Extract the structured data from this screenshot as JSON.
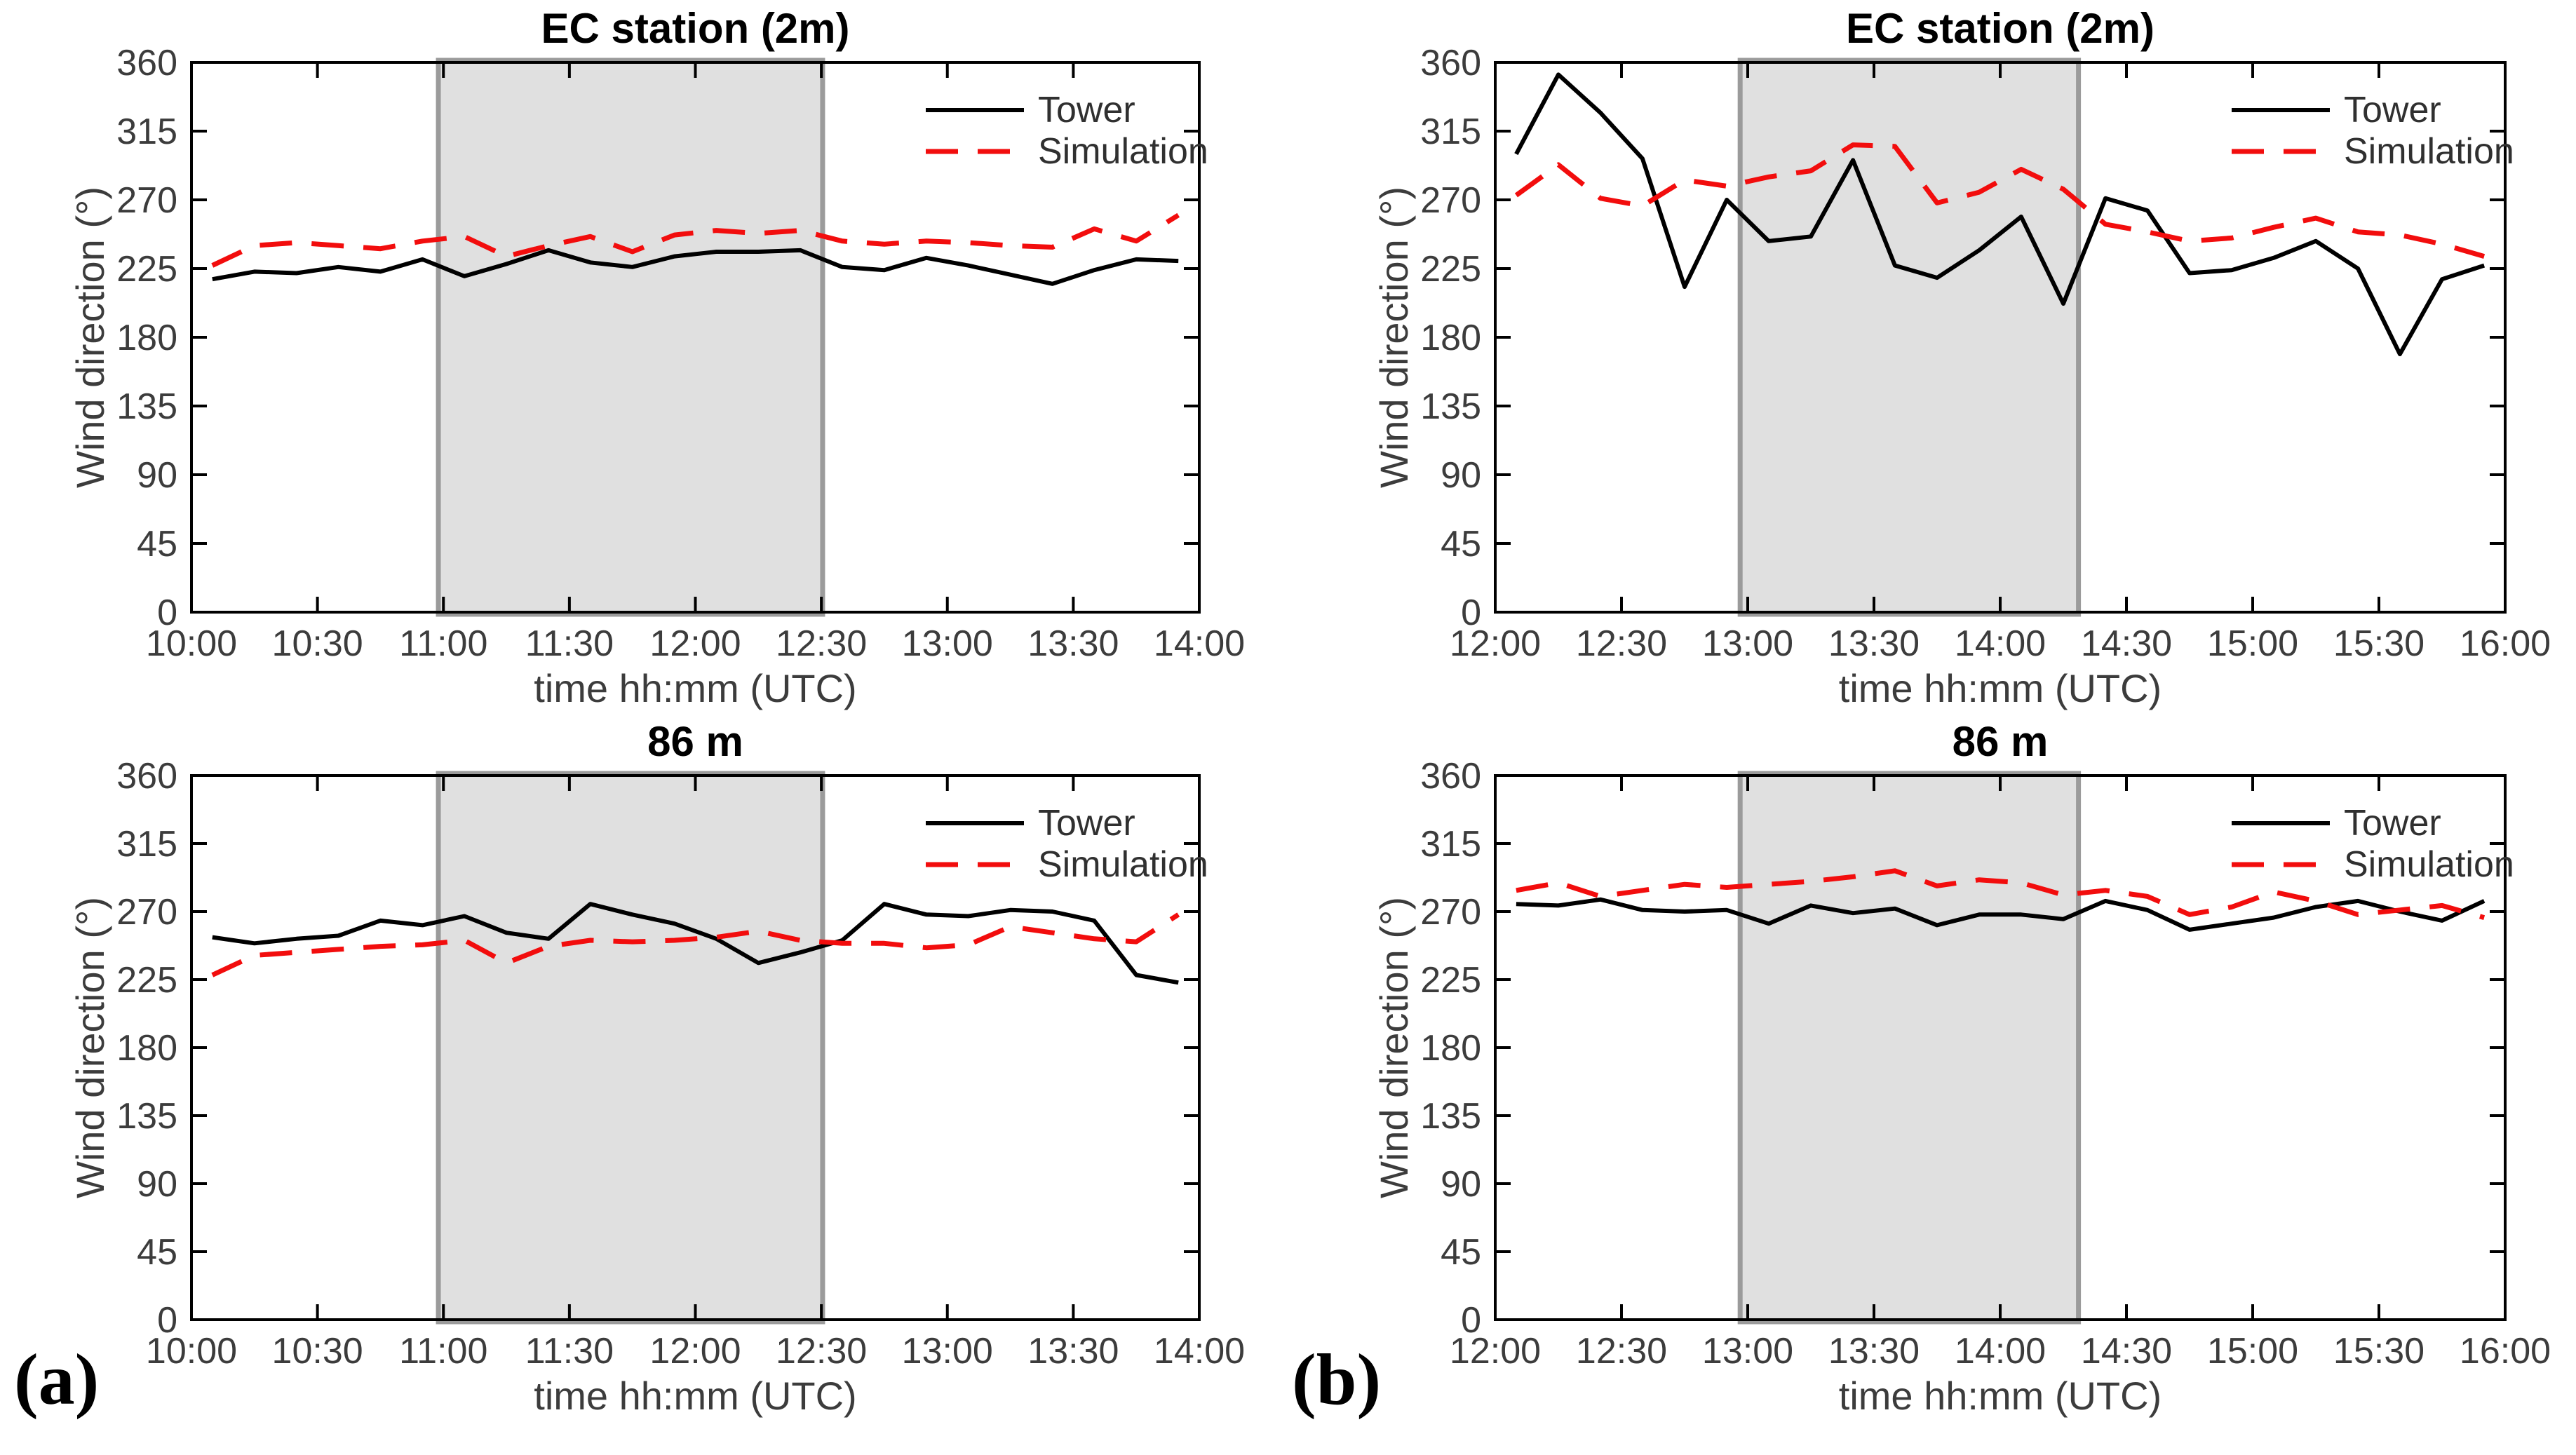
{
  "figure": {
    "caption_labels": [
      "(a)",
      "(b)"
    ],
    "colors": {
      "tower": "#000000",
      "simulation": "#f20d0d",
      "band_fill": "#e0e0e0",
      "band_edge": "#9b9b9b",
      "axis": "#000000",
      "tick_label": "#3c3c3c",
      "title": "#000000"
    },
    "legend_labels": [
      "Tower",
      "Simulation"
    ]
  },
  "chart_data": [
    {
      "type": "line",
      "panel": "top-left",
      "title": "EC station (2m)",
      "xlabel": "time hh:mm (UTC)",
      "ylabel": "Wind direction (°)",
      "ylim": [
        0,
        360
      ],
      "yticks": [
        0,
        45,
        90,
        135,
        180,
        225,
        270,
        315,
        360
      ],
      "xtick_hours": [
        10,
        10.5,
        11,
        11.5,
        12,
        12.5,
        13,
        13.5,
        14
      ],
      "xtick_labels": [
        "10:00",
        "10:30",
        "11:00",
        "11:30",
        "12:00",
        "12:30",
        "13:00",
        "13:30",
        "14:00"
      ],
      "shaded_region_hours": [
        10.98,
        12.505
      ],
      "grid": false,
      "legend_position": "top-right",
      "x_hours": [
        10.083,
        10.25,
        10.417,
        10.583,
        10.75,
        10.917,
        11.083,
        11.25,
        11.417,
        11.583,
        11.75,
        11.917,
        12.083,
        12.25,
        12.417,
        12.583,
        12.75,
        12.917,
        13.083,
        13.25,
        13.417,
        13.583,
        13.75,
        13.917
      ],
      "series": [
        {
          "name": "Tower",
          "style": "solid",
          "values": [
            218,
            223,
            222,
            226,
            223,
            231,
            220,
            228,
            237,
            229,
            226,
            233,
            236,
            236,
            237,
            226,
            224,
            232,
            227,
            221,
            215,
            224,
            231,
            230
          ]
        },
        {
          "name": "Simulation",
          "style": "dashed",
          "values": [
            227,
            240,
            242,
            240,
            238,
            243,
            246,
            233,
            240,
            246,
            236,
            247,
            250,
            248,
            250,
            243,
            241,
            243,
            242,
            240,
            239,
            251,
            243,
            260
          ]
        }
      ]
    },
    {
      "type": "line",
      "panel": "top-right",
      "title": "EC station (2m)",
      "xlabel": "time hh:mm (UTC)",
      "ylabel": "Wind direction (°)",
      "ylim": [
        0,
        360
      ],
      "yticks": [
        0,
        45,
        90,
        135,
        180,
        225,
        270,
        315,
        360
      ],
      "xtick_hours": [
        12,
        12.5,
        13,
        13.5,
        14,
        14.5,
        15,
        15.5,
        16
      ],
      "xtick_labels": [
        "12:00",
        "12:30",
        "13:00",
        "13:30",
        "14:00",
        "14:30",
        "15:00",
        "15:30",
        "16:00"
      ],
      "shaded_region_hours": [
        12.97,
        14.31
      ],
      "grid": false,
      "legend_position": "top-right",
      "x_hours": [
        12.083,
        12.25,
        12.417,
        12.583,
        12.75,
        12.917,
        13.083,
        13.25,
        13.417,
        13.583,
        13.75,
        13.917,
        14.083,
        14.25,
        14.417,
        14.583,
        14.75,
        14.917,
        15.083,
        15.25,
        15.417,
        15.583,
        15.75,
        15.917
      ],
      "series": [
        {
          "name": "Tower",
          "style": "solid",
          "values": [
            300,
            352,
            327,
            297,
            213,
            270,
            243,
            246,
            296,
            227,
            219,
            237,
            259,
            202,
            271,
            263,
            222,
            224,
            232,
            243,
            225,
            169,
            218,
            227
          ]
        },
        {
          "name": "Simulation",
          "style": "dashed",
          "values": [
            273,
            293,
            271,
            266,
            283,
            279,
            285,
            289,
            306,
            305,
            268,
            275,
            290,
            277,
            254,
            249,
            243,
            245,
            252,
            258,
            249,
            247,
            241,
            233
          ]
        }
      ]
    },
    {
      "type": "line",
      "panel": "bottom-left",
      "title": "86 m",
      "xlabel": "time hh:mm (UTC)",
      "ylabel": "Wind direction (°)",
      "ylim": [
        0,
        360
      ],
      "yticks": [
        0,
        45,
        90,
        135,
        180,
        225,
        270,
        315,
        360
      ],
      "xtick_hours": [
        10,
        10.5,
        11,
        11.5,
        12,
        12.5,
        13,
        13.5,
        14
      ],
      "xtick_labels": [
        "10:00",
        "10:30",
        "11:00",
        "11:30",
        "12:00",
        "12:30",
        "13:00",
        "13:30",
        "14:00"
      ],
      "shaded_region_hours": [
        10.98,
        12.505
      ],
      "grid": false,
      "legend_position": "top-right",
      "x_hours": [
        10.083,
        10.25,
        10.417,
        10.583,
        10.75,
        10.917,
        11.083,
        11.25,
        11.417,
        11.583,
        11.75,
        11.917,
        12.083,
        12.25,
        12.417,
        12.583,
        12.75,
        12.917,
        13.083,
        13.25,
        13.417,
        13.583,
        13.75,
        13.917
      ],
      "series": [
        {
          "name": "Tower",
          "style": "solid",
          "values": [
            253,
            249,
            252,
            254,
            264,
            261,
            267,
            256,
            252,
            275,
            268,
            262,
            252,
            236,
            243,
            251,
            275,
            268,
            267,
            271,
            270,
            264,
            228,
            223
          ]
        },
        {
          "name": "Simulation",
          "style": "dashed",
          "values": [
            228,
            241,
            243,
            245,
            247,
            248,
            251,
            236,
            247,
            251,
            250,
            251,
            253,
            257,
            251,
            249,
            249,
            246,
            248,
            260,
            256,
            252,
            250,
            268
          ]
        }
      ]
    },
    {
      "type": "line",
      "panel": "bottom-right",
      "title": "86 m",
      "xlabel": "time hh:mm (UTC)",
      "ylabel": "Wind direction (°)",
      "ylim": [
        0,
        360
      ],
      "yticks": [
        0,
        45,
        90,
        135,
        180,
        225,
        270,
        315,
        360
      ],
      "xtick_hours": [
        12,
        12.5,
        13,
        13.5,
        14,
        14.5,
        15,
        15.5,
        16
      ],
      "xtick_labels": [
        "12:00",
        "12:30",
        "13:00",
        "13:30",
        "14:00",
        "14:30",
        "15:00",
        "15:30",
        "16:00"
      ],
      "shaded_region_hours": [
        12.97,
        14.31
      ],
      "grid": false,
      "legend_position": "top-right",
      "x_hours": [
        12.083,
        12.25,
        12.417,
        12.583,
        12.75,
        12.917,
        13.083,
        13.25,
        13.417,
        13.583,
        13.75,
        13.917,
        14.083,
        14.25,
        14.417,
        14.583,
        14.75,
        14.917,
        15.083,
        15.25,
        15.417,
        15.583,
        15.75,
        15.917
      ],
      "series": [
        {
          "name": "Tower",
          "style": "solid",
          "values": [
            275,
            274,
            278,
            271,
            270,
            271,
            262,
            274,
            269,
            272,
            261,
            268,
            268,
            265,
            277,
            271,
            258,
            262,
            266,
            273,
            277,
            270,
            264,
            277
          ]
        },
        {
          "name": "Simulation",
          "style": "dashed",
          "values": [
            284,
            289,
            280,
            284,
            288,
            286,
            288,
            290,
            293,
            297,
            287,
            291,
            289,
            281,
            284,
            280,
            268,
            273,
            283,
            277,
            268,
            271,
            274,
            266
          ]
        }
      ]
    }
  ]
}
